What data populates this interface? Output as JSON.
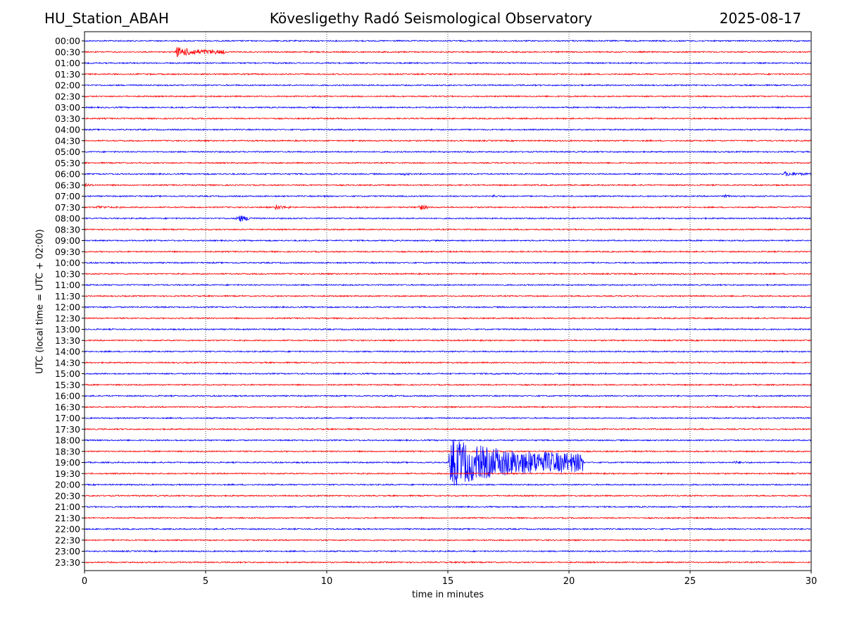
{
  "header": {
    "station": "HU_Station_ABAH",
    "observatory": "Kövesligethy Radó Seismological Observatory",
    "date": "2025-08-17"
  },
  "chart_data": {
    "type": "line",
    "title": "Kövesligethy Radó Seismological Observatory",
    "xlabel": "time in minutes",
    "ylabel": "UTC (local time = UTC + 02:00)",
    "xlim": [
      0,
      30
    ],
    "x_ticks": [
      "0",
      "5",
      "10",
      "15",
      "20",
      "25",
      "30"
    ],
    "grid": "vertical dotted at x ticks",
    "colors": [
      "#0000ff",
      "#ff0000"
    ],
    "rows": [
      "00:00",
      "00:30",
      "01:00",
      "01:30",
      "02:00",
      "02:30",
      "03:00",
      "03:30",
      "04:00",
      "04:30",
      "05:00",
      "05:30",
      "06:00",
      "06:30",
      "07:00",
      "07:30",
      "08:00",
      "08:30",
      "09:00",
      "09:30",
      "10:00",
      "10:30",
      "11:00",
      "11:30",
      "12:00",
      "12:30",
      "13:00",
      "13:30",
      "14:00",
      "14:30",
      "15:00",
      "15:30",
      "16:00",
      "16:30",
      "17:00",
      "17:30",
      "18:00",
      "18:30",
      "19:00",
      "19:30",
      "20:00",
      "20:30",
      "21:00",
      "21:30",
      "22:00",
      "22:30",
      "23:00",
      "23:30"
    ],
    "events": [
      {
        "row": "00:30",
        "start_min": 3.8,
        "duration_min": 2.0,
        "amplitude": 0.9
      },
      {
        "row": "06:00",
        "start_min": 13.2,
        "duration_min": 0.5,
        "amplitude": 0.3
      },
      {
        "row": "06:00",
        "start_min": 28.9,
        "duration_min": 1.1,
        "amplitude": 0.45
      },
      {
        "row": "06:30",
        "start_min": 0.0,
        "duration_min": 0.6,
        "amplitude": 0.3
      },
      {
        "row": "07:00",
        "start_min": 9.8,
        "duration_min": 0.4,
        "amplitude": 0.3
      },
      {
        "row": "07:00",
        "start_min": 16.9,
        "duration_min": 0.5,
        "amplitude": 0.3
      },
      {
        "row": "07:00",
        "start_min": 26.4,
        "duration_min": 0.5,
        "amplitude": 0.35
      },
      {
        "row": "07:30",
        "start_min": 0.5,
        "duration_min": 1.2,
        "amplitude": 0.3
      },
      {
        "row": "07:30",
        "start_min": 7.9,
        "duration_min": 0.6,
        "amplitude": 0.55
      },
      {
        "row": "07:30",
        "start_min": 13.8,
        "duration_min": 0.4,
        "amplitude": 0.7
      },
      {
        "row": "08:00",
        "start_min": 6.3,
        "duration_min": 0.6,
        "amplitude": 0.85
      },
      {
        "row": "15:00",
        "start_min": 16.9,
        "duration_min": 0.4,
        "amplitude": 0.25
      },
      {
        "row": "19:00",
        "start_min": 15.1,
        "duration_min": 5.5,
        "amplitude": 4.2
      },
      {
        "row": "19:00",
        "start_min": 26.8,
        "duration_min": 0.8,
        "amplitude": 0.3
      },
      {
        "row": "23:30",
        "start_min": 15.6,
        "duration_min": 0.6,
        "amplitude": 0.25
      }
    ]
  }
}
